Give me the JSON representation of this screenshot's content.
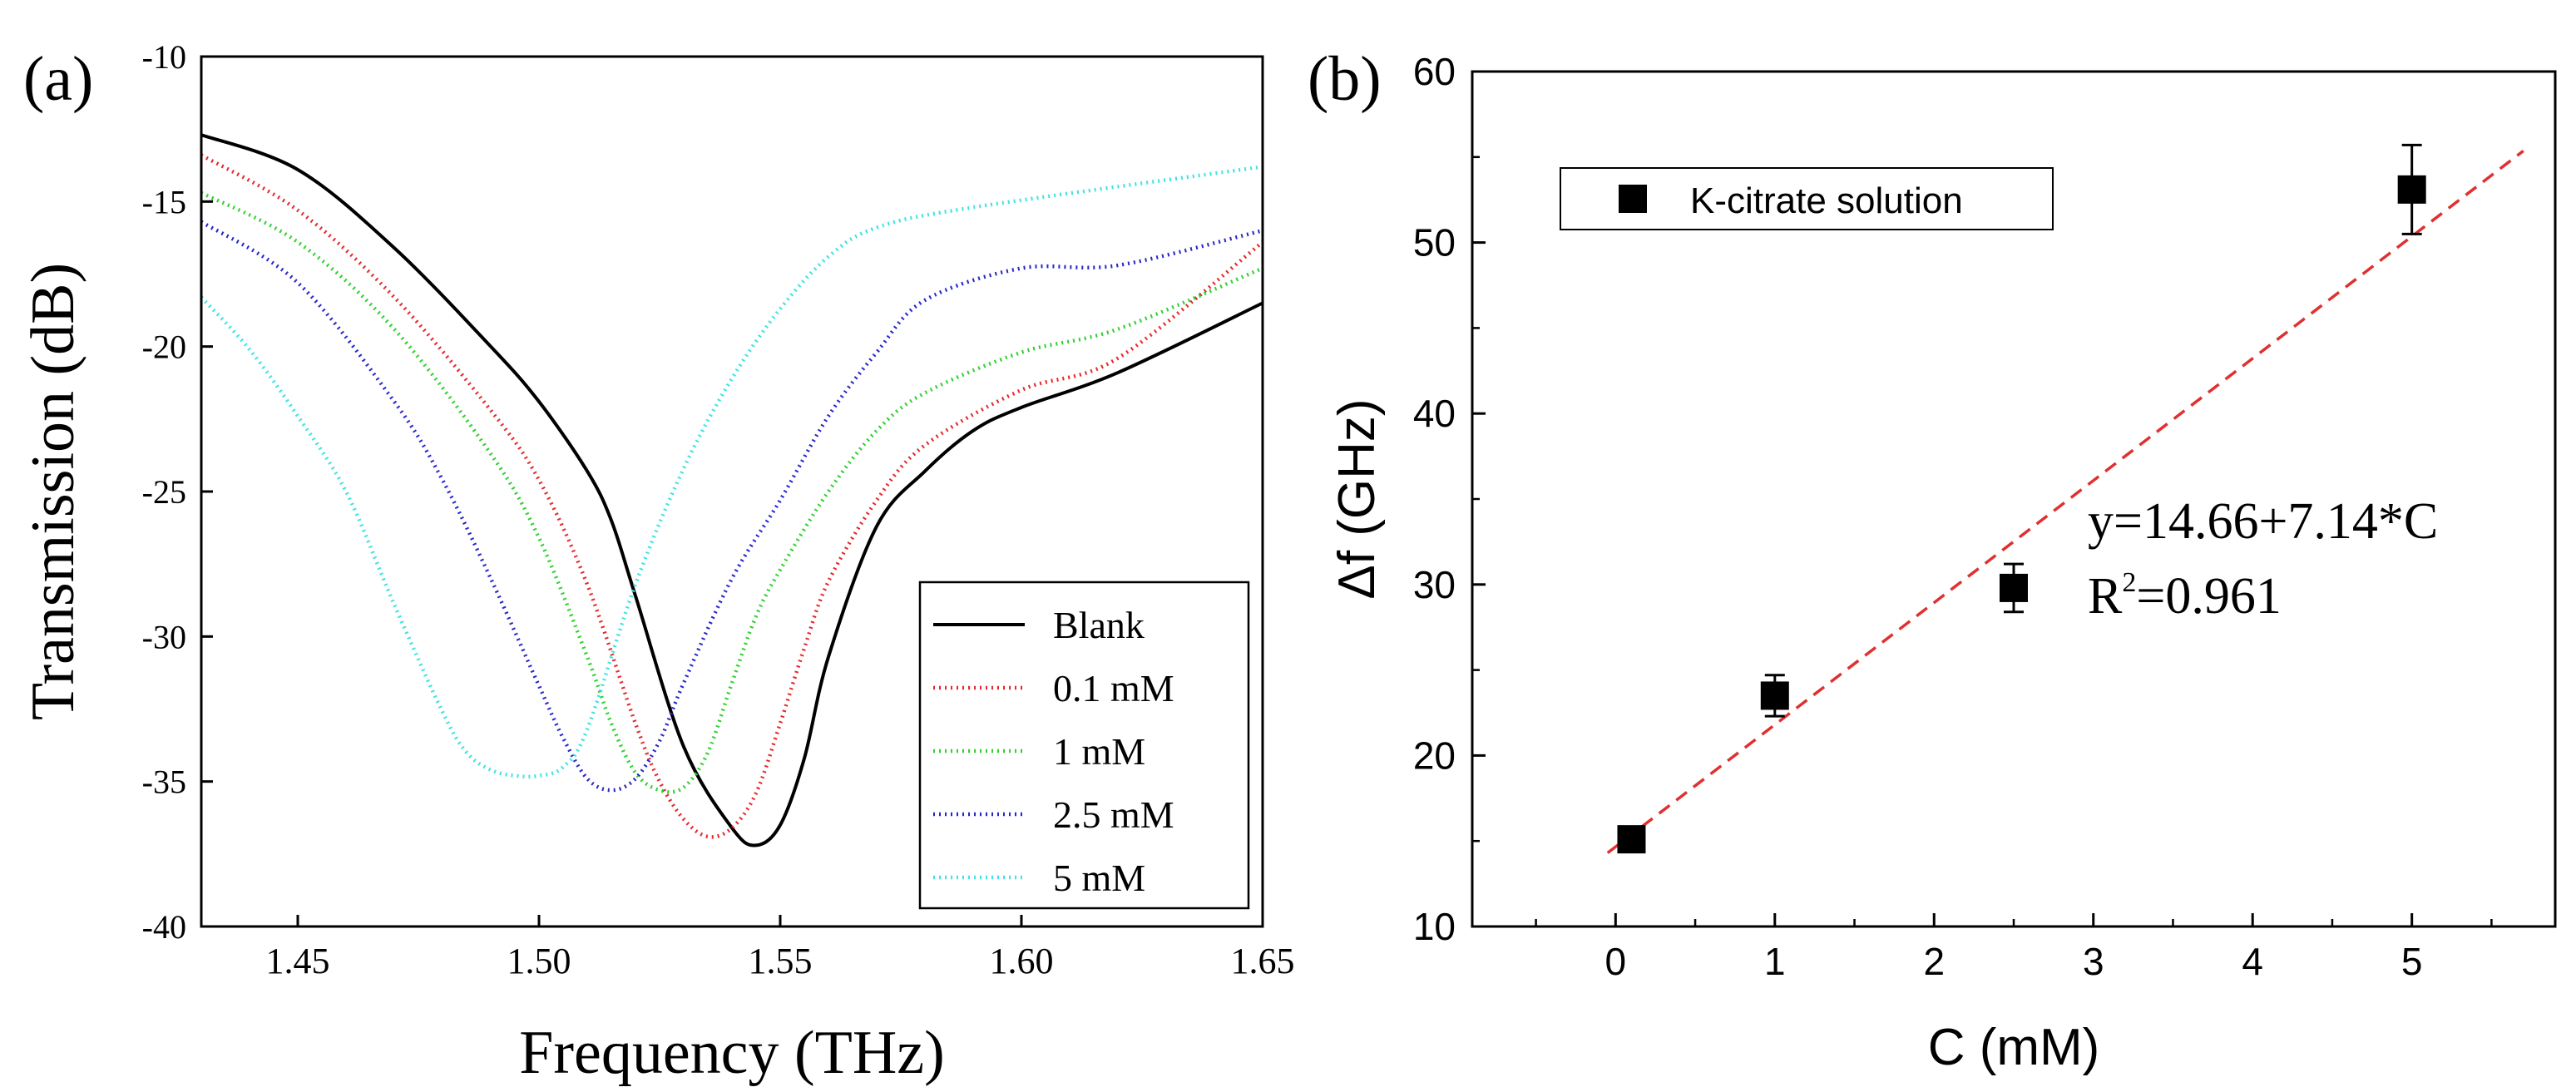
{
  "chart_data": [
    {
      "panel": "(a)",
      "type": "line",
      "xlabel": "Frequency (THz)",
      "ylabel": "Transmission (dB)",
      "xlim": [
        1.43,
        1.65
      ],
      "ylim": [
        -40,
        -10
      ],
      "xticks": [
        "1.45",
        "1.50",
        "1.55",
        "1.60",
        "1.65"
      ],
      "yticks": [
        "-10",
        "-15",
        "-20",
        "-25",
        "-30",
        "-35",
        "-40"
      ],
      "legend": "bottom-right",
      "series": [
        {
          "name": "Blank",
          "color": "#000000",
          "style": "solid",
          "x": [
            1.43,
            1.45,
            1.47,
            1.49,
            1.5,
            1.51,
            1.515,
            1.52,
            1.53,
            1.54,
            1.545,
            1.55,
            1.555,
            1.56,
            1.57,
            1.58,
            1.59,
            1.6,
            1.62,
            1.65
          ],
          "y": [
            -12.7,
            -13.9,
            -16.6,
            -20.0,
            -21.9,
            -24.3,
            -26.0,
            -28.6,
            -33.8,
            -36.6,
            -37.2,
            -36.5,
            -34.2,
            -30.7,
            -26.2,
            -24.3,
            -22.9,
            -22.1,
            -20.9,
            -18.5
          ]
        },
        {
          "name": "0.1 mM",
          "color": "#e8262a",
          "style": "dotted",
          "x": [
            1.43,
            1.45,
            1.47,
            1.49,
            1.5,
            1.51,
            1.52,
            1.525,
            1.53,
            1.535,
            1.54,
            1.545,
            1.55,
            1.555,
            1.56,
            1.57,
            1.58,
            1.6,
            1.62,
            1.65
          ],
          "y": [
            -13.4,
            -15.3,
            -18.3,
            -22.2,
            -24.6,
            -28.2,
            -33.0,
            -35.0,
            -36.3,
            -36.9,
            -36.6,
            -35.4,
            -33.0,
            -30.4,
            -28.1,
            -25.3,
            -23.4,
            -21.5,
            -20.4,
            -16.4
          ]
        },
        {
          "name": "1 mM",
          "color": "#2fd12f",
          "style": "dotted",
          "x": [
            1.43,
            1.45,
            1.47,
            1.49,
            1.5,
            1.51,
            1.515,
            1.52,
            1.525,
            1.53,
            1.535,
            1.54,
            1.545,
            1.55,
            1.56,
            1.57,
            1.58,
            1.6,
            1.62,
            1.65
          ],
          "y": [
            -14.7,
            -16.4,
            -19.4,
            -23.7,
            -26.6,
            -30.7,
            -33.0,
            -34.7,
            -35.3,
            -35.2,
            -34.0,
            -31.6,
            -29.3,
            -27.7,
            -25.0,
            -22.9,
            -21.6,
            -20.2,
            -19.4,
            -17.3
          ]
        },
        {
          "name": "2.5 mM",
          "color": "#2626c8",
          "style": "dotted",
          "x": [
            1.43,
            1.45,
            1.47,
            1.48,
            1.49,
            1.5,
            1.505,
            1.51,
            1.515,
            1.52,
            1.525,
            1.53,
            1.54,
            1.55,
            1.56,
            1.57,
            1.58,
            1.6,
            1.62,
            1.65
          ],
          "y": [
            -15.7,
            -17.8,
            -21.9,
            -24.6,
            -28.0,
            -31.7,
            -33.5,
            -34.9,
            -35.3,
            -34.9,
            -33.6,
            -31.6,
            -28.0,
            -25.3,
            -22.4,
            -20.2,
            -18.4,
            -17.3,
            -17.2,
            -16.0
          ]
        },
        {
          "name": "5 mM",
          "color": "#3fe3e3",
          "style": "dotted",
          "x": [
            1.43,
            1.44,
            1.45,
            1.46,
            1.47,
            1.48,
            1.485,
            1.49,
            1.495,
            1.5,
            1.505,
            1.51,
            1.52,
            1.53,
            1.54,
            1.55,
            1.56,
            1.57,
            1.59,
            1.65
          ],
          "y": [
            -18.3,
            -20.1,
            -22.4,
            -25.0,
            -28.9,
            -32.6,
            -34.0,
            -34.6,
            -34.8,
            -34.8,
            -34.5,
            -33.2,
            -28.2,
            -24.2,
            -21.1,
            -18.7,
            -16.9,
            -15.9,
            -15.2,
            -13.8
          ]
        }
      ]
    },
    {
      "panel": "(b)",
      "type": "scatter",
      "xlabel": "C (mM)",
      "ylabel": "Δf (GHz)",
      "xlim": [
        -0.9,
        5.9
      ],
      "ylim": [
        10,
        60
      ],
      "xticks": [
        "0",
        "1",
        "2",
        "3",
        "4",
        "5"
      ],
      "yticks": [
        "10",
        "20",
        "30",
        "40",
        "50",
        "60"
      ],
      "legend": "top-left",
      "legend_label": "K-citrate solution",
      "series": [
        {
          "name": "K-citrate solution",
          "x": [
            0.1,
            1,
            2.5,
            5
          ],
          "y": [
            15.1,
            23.5,
            29.8,
            53.1
          ],
          "err": [
            0.5,
            1.2,
            1.4,
            2.6
          ]
        }
      ],
      "fit": {
        "intercept": 14.66,
        "slope": 7.14,
        "x_range": [
          -0.05,
          5.7
        ],
        "color": "#e03030",
        "style": "dashed"
      },
      "annotation": {
        "equation": "y=14.66+7.14*C",
        "r2_prefix": "R",
        "r2_sup": "2",
        "r2_value": "=0.961"
      }
    }
  ]
}
